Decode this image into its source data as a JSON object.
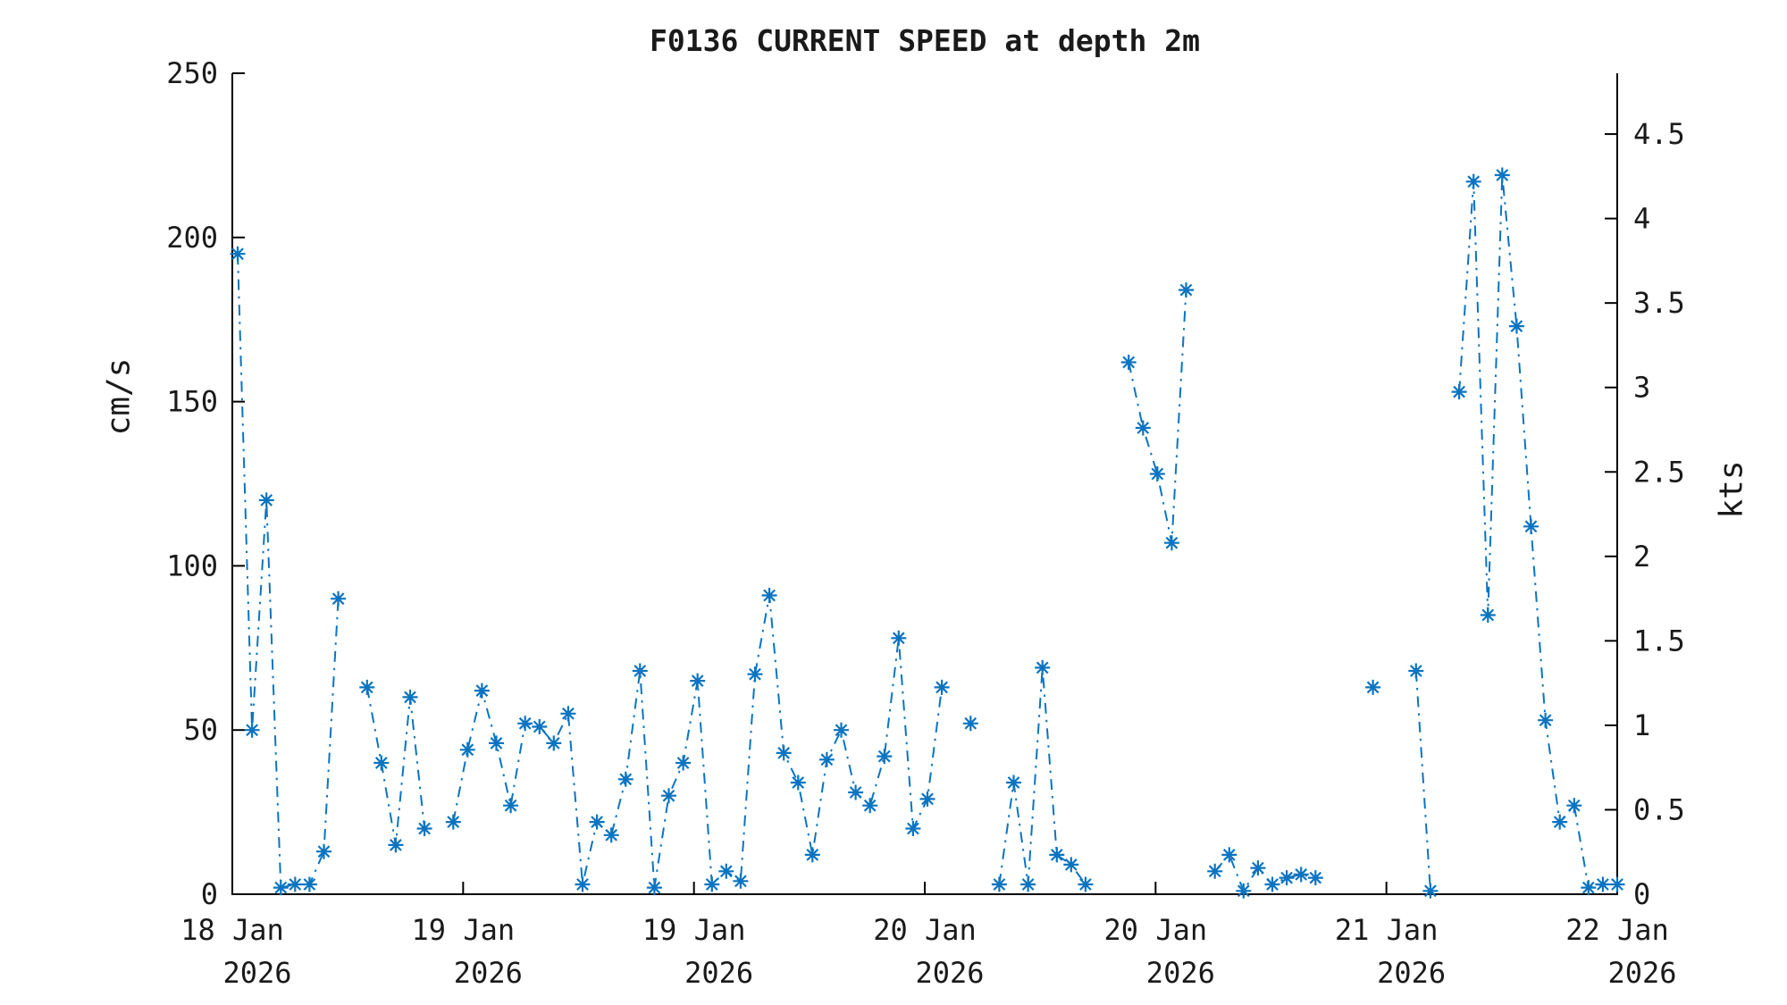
{
  "title": "F0136 CURRENT SPEED at depth 2m",
  "left_axis": {
    "label": "cm/s",
    "tick_labels": [
      "0",
      "50",
      "100",
      "150",
      "200",
      "250"
    ],
    "tick_values": [
      0,
      50,
      100,
      150,
      200,
      250
    ]
  },
  "right_axis": {
    "label": "kts",
    "tick_labels": [
      "0",
      "0.5",
      "1",
      "1.5",
      "2",
      "2.5",
      "3",
      "3.5",
      "4",
      "4.5"
    ],
    "tick_values_kts": [
      0,
      0.5,
      1,
      1.5,
      2,
      2.5,
      3,
      3.5,
      4,
      4.5
    ],
    "cm_s_per_kt": 51.44
  },
  "x_axis": {
    "tick_labels": [
      {
        "day": "18 Jan",
        "year": "2026"
      },
      {
        "day": "19 Jan",
        "year": "2026"
      },
      {
        "day": "19 Jan",
        "year": "2026"
      },
      {
        "day": "20 Jan",
        "year": "2026"
      },
      {
        "day": "20 Jan",
        "year": "2026"
      },
      {
        "day": "21 Jan",
        "year": "2026"
      },
      {
        "day": "22 Jan",
        "year": "2026"
      }
    ]
  },
  "style": {
    "line_color": "#0b74c1",
    "axis_color": "#000000",
    "text_color": "#1a1a1a",
    "background": "#ffffff"
  },
  "chart_data": {
    "type": "line",
    "title": "F0136 CURRENT SPEED at depth 2m",
    "xlabel": "",
    "ylabel": "cm/s",
    "ylabel_right": "kts",
    "ylim": [
      0,
      250
    ],
    "ylim_right_kts": [
      0,
      4.86
    ],
    "grid": false,
    "legend_position": "none",
    "linestyle": "dash-dot",
    "marker": "asterisk",
    "x_unit": "hours since 18 Jan 2026 00:00",
    "x_span_hours": [
      0,
      96
    ],
    "x_ticks_hours": [
      0,
      16,
      32,
      48,
      64,
      80,
      96
    ],
    "x_tick_text": [
      "18 Jan 2026",
      "19 Jan 2026",
      "19 Jan 2026",
      "20 Jan 2026",
      "20 Jan 2026",
      "21 Jan 2026",
      "22 Jan 2026"
    ],
    "y_ticks_left_cm_s": [
      0,
      50,
      100,
      150,
      200,
      250
    ],
    "y_ticks_right_kts": [
      0,
      0.5,
      1,
      1.5,
      2,
      2.5,
      3,
      3.5,
      4,
      4.5
    ],
    "series": [
      {
        "name": "current speed (cm/s)",
        "values": [
          195,
          50,
          120,
          2,
          3,
          3,
          13,
          90,
          null,
          63,
          40,
          15,
          60,
          20,
          null,
          22,
          44,
          62,
          46,
          27,
          52,
          51,
          46,
          55,
          3,
          22,
          18,
          35,
          68,
          2,
          30,
          40,
          65,
          3,
          7,
          4,
          67,
          91,
          43,
          34,
          12,
          41,
          50,
          31,
          27,
          42,
          78,
          20,
          29,
          63,
          null,
          52,
          null,
          3,
          34,
          3,
          69,
          12,
          9,
          3,
          null,
          null,
          162,
          142,
          128,
          107,
          184,
          null,
          7,
          12,
          1,
          8,
          3,
          5,
          6,
          5,
          null,
          null,
          null,
          63,
          null,
          null,
          68,
          1,
          null,
          153,
          217,
          85,
          219,
          173,
          112,
          53,
          22,
          27,
          2,
          3,
          3
        ]
      }
    ]
  }
}
